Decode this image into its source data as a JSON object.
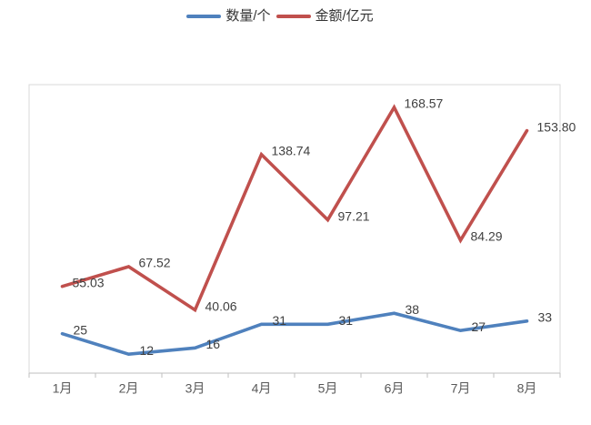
{
  "chart_data": {
    "type": "line",
    "title": "",
    "xlabel": "",
    "ylabel": "",
    "categories": [
      "1月",
      "2月",
      "3月",
      "4月",
      "5月",
      "6月",
      "7月",
      "8月"
    ],
    "series": [
      {
        "name": "数量/个",
        "color": "#4f81bd",
        "values": [
          25,
          12,
          16,
          31,
          31,
          38,
          27,
          33
        ],
        "labels": [
          "25",
          "12",
          "16",
          "31",
          "31",
          "38",
          "27",
          "33"
        ]
      },
      {
        "name": "金额/亿元",
        "color": "#c0504d",
        "values": [
          55.03,
          67.52,
          40.06,
          138.74,
          97.21,
          168.57,
          84.29,
          153.8
        ],
        "labels": [
          "55.03",
          "67.52",
          "40.06",
          "138.74",
          "97.21",
          "168.57",
          "84.29",
          "153.80"
        ]
      }
    ],
    "ylim": [
      0,
      183
    ],
    "grid": false,
    "legend_position": "top",
    "data_labels_visible": true,
    "axis_line_color": "#bfbfbf",
    "plot_border_color": "#d9d9d9",
    "background_color": "#ffffff"
  }
}
